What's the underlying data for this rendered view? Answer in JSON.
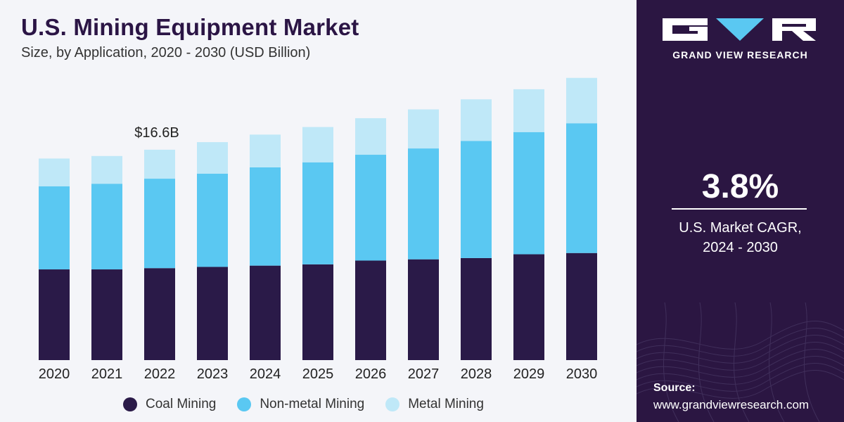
{
  "header": {
    "title": "U.S. Mining Equipment Market",
    "subtitle": "Size, by Application, 2020 - 2030 (USD Billion)"
  },
  "chart_data": {
    "type": "bar",
    "stacked": true,
    "categories": [
      "2020",
      "2021",
      "2022",
      "2023",
      "2024",
      "2025",
      "2026",
      "2027",
      "2028",
      "2029",
      "2030"
    ],
    "series": [
      {
        "name": "Coal Mining",
        "color": "#2a1a48",
        "values": [
          7.2,
          7.2,
          7.3,
          7.4,
          7.5,
          7.6,
          7.9,
          8.0,
          8.1,
          8.4,
          8.5
        ]
      },
      {
        "name": "Non-metal Mining",
        "color": "#5ac8f2",
        "values": [
          6.6,
          6.8,
          7.1,
          7.4,
          7.8,
          8.1,
          8.4,
          8.8,
          9.3,
          9.7,
          10.3
        ]
      },
      {
        "name": "Metal Mining",
        "color": "#bfe8f8",
        "values": [
          2.2,
          2.2,
          2.3,
          2.5,
          2.6,
          2.8,
          2.9,
          3.1,
          3.3,
          3.4,
          3.6
        ]
      }
    ],
    "annotations": [
      {
        "category": "2022",
        "text": "$16.6B"
      }
    ],
    "ylim": [
      0,
      23
    ],
    "legend_position": "bottom",
    "grid": false
  },
  "sidebar": {
    "brand": "GRAND VIEW RESEARCH",
    "cagr_value": "3.8%",
    "cagr_label_line1": "U.S. Market CAGR,",
    "cagr_label_line2": "2024 - 2030",
    "source_label": "Source:",
    "source_url": "www.grandviewresearch.com"
  }
}
